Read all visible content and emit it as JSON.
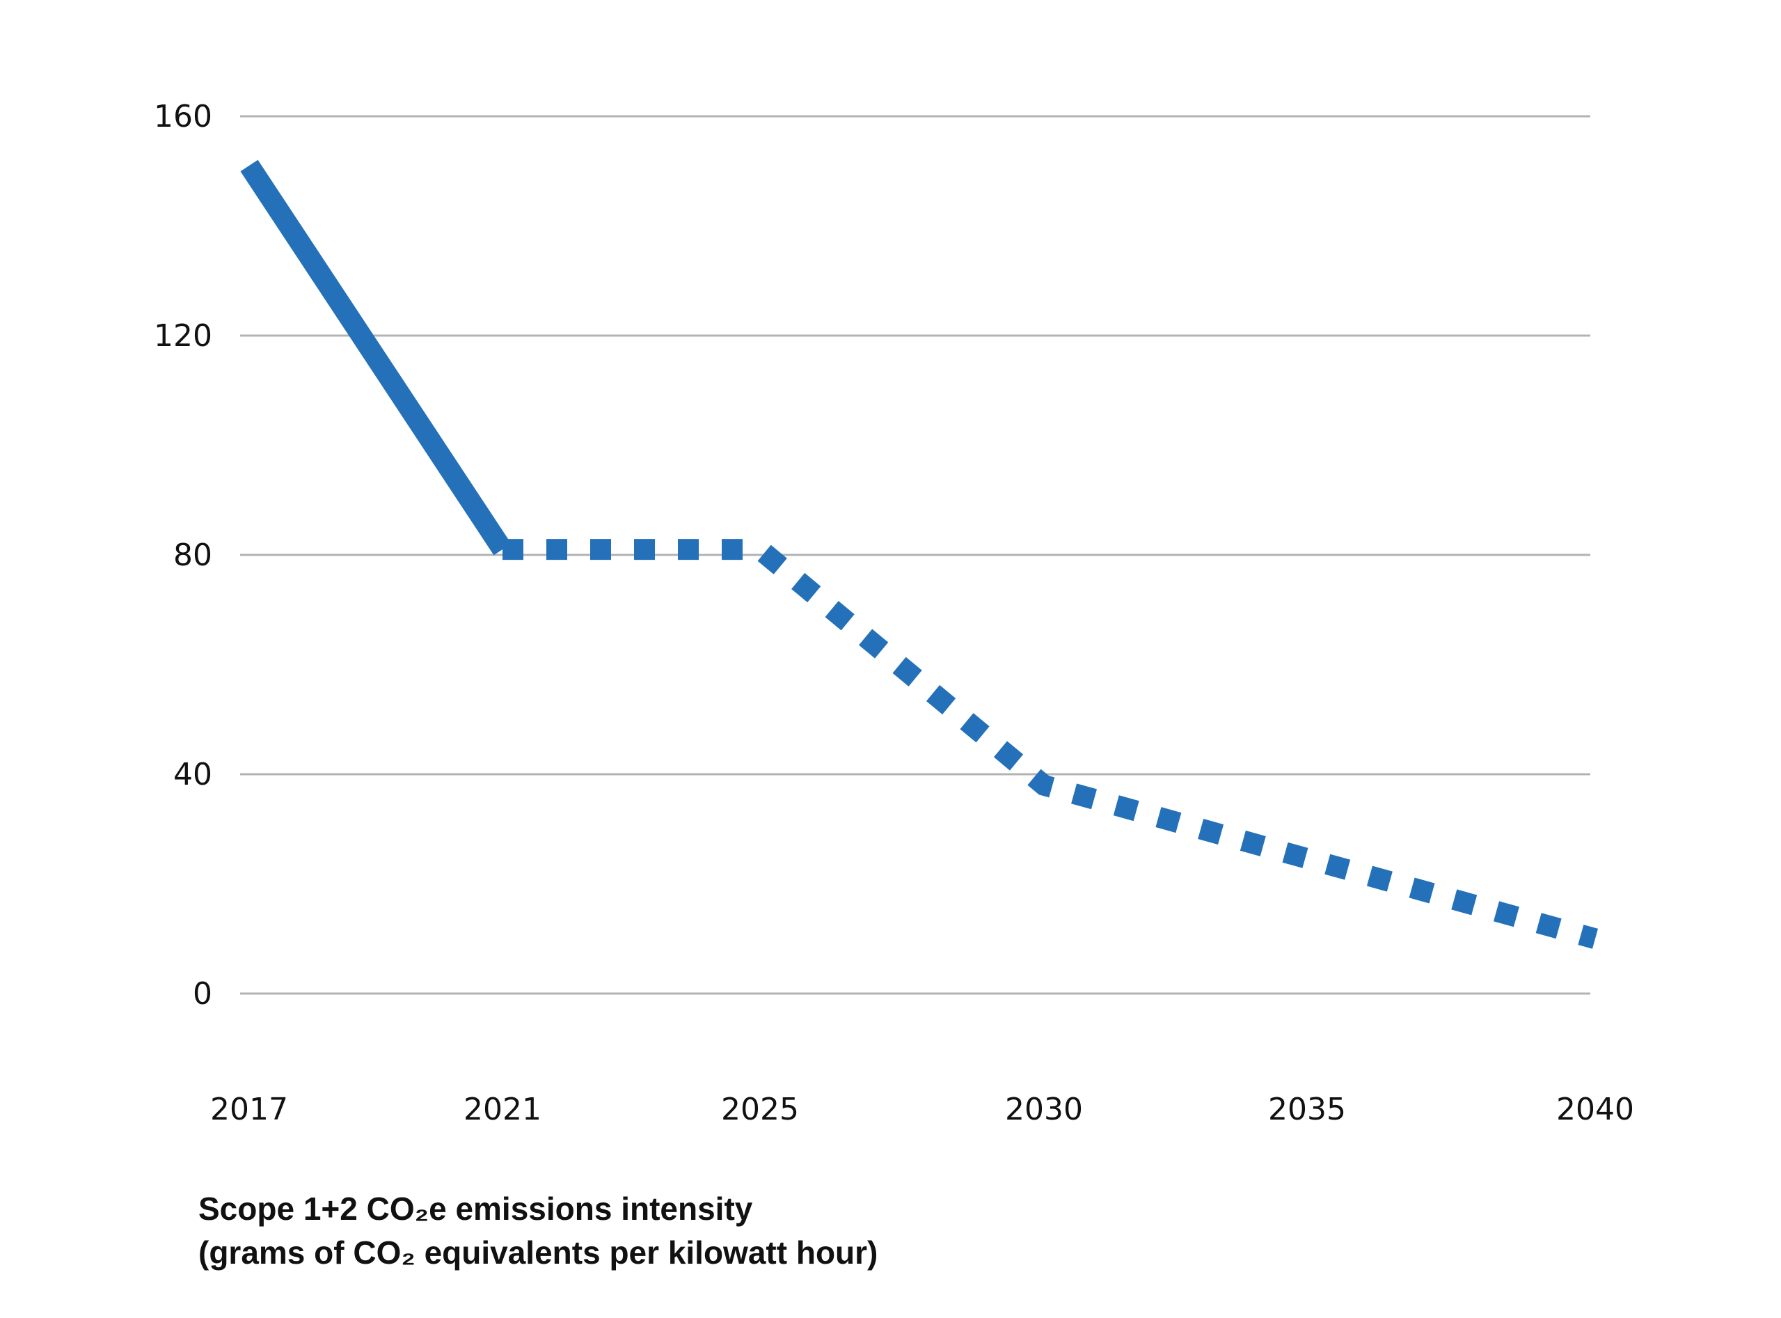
{
  "chart_data": {
    "type": "line",
    "x": [
      2017,
      2021,
      2025,
      2030,
      2035,
      2040
    ],
    "xticks": [
      "2017",
      "2021",
      "2025",
      "2030",
      "2035",
      "2040"
    ],
    "yticks": [
      "0",
      "40",
      "80",
      "120",
      "160"
    ],
    "ylim": [
      0,
      160
    ],
    "grid": "horizontal",
    "series": [
      {
        "style": "solid",
        "points": [
          [
            2017,
            151
          ],
          [
            2021,
            81
          ]
        ]
      },
      {
        "style": "dotted",
        "points": [
          [
            2021,
            81
          ],
          [
            2025,
            81
          ],
          [
            2030,
            38
          ],
          [
            2040,
            10
          ]
        ]
      }
    ],
    "caption_line1": "Scope 1+2 CO₂e emissions intensity",
    "caption_line2": "(grams of CO₂ equivalents per kilowatt hour)",
    "colors": {
      "line": "#2471b9",
      "grid": "#b3b3b3",
      "text": "#111111"
    }
  }
}
